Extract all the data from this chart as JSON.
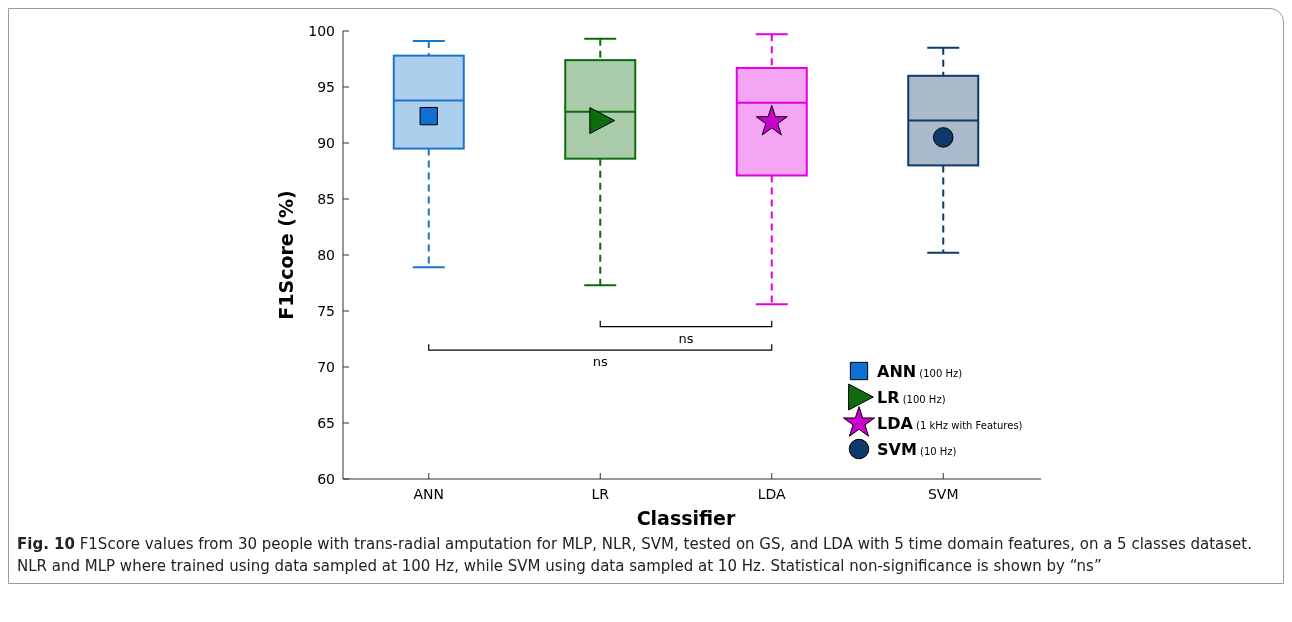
{
  "chart_data": {
    "type": "box",
    "xlabel": "Classifier",
    "ylabel": "F1Score (%)",
    "categories": [
      "ANN",
      "LR",
      "LDA",
      "SVM"
    ],
    "colors": [
      "#1874cd",
      "#0d6b0d",
      "#e000e0",
      "#0d3a6b"
    ],
    "boxes": [
      {
        "low": 78.9,
        "q1": 89.5,
        "median": 93.8,
        "q3": 97.8,
        "high": 99.1
      },
      {
        "low": 77.3,
        "q1": 88.6,
        "median": 92.8,
        "q3": 97.4,
        "high": 99.3
      },
      {
        "low": 75.6,
        "q1": 87.1,
        "median": 93.6,
        "q3": 96.7,
        "high": 99.7
      },
      {
        "low": 80.2,
        "q1": 88.0,
        "median": 92.0,
        "q3": 96.0,
        "high": 98.5
      }
    ],
    "series": [
      {
        "type": "scatter",
        "name": "ANN (100 Hz)",
        "color": "#0f6fd3",
        "marker": "square",
        "x": [
          "ANN"
        ],
        "values": [
          92.4
        ]
      },
      {
        "type": "scatter",
        "name": "LR (100 Hz)",
        "color": "#0d6b0d",
        "marker": "triangle",
        "x": [
          "LR"
        ],
        "values": [
          92.0
        ]
      },
      {
        "type": "scatter",
        "name": "LDA (1 kHz with Features)",
        "color": "#cc00cc",
        "marker": "star",
        "x": [
          "LDA"
        ],
        "values": [
          91.9
        ]
      },
      {
        "type": "scatter",
        "name": "SVM (10 Hz)",
        "color": "#0d3a6b",
        "marker": "circle",
        "x": [
          "SVM"
        ],
        "values": [
          90.5
        ]
      }
    ],
    "ylim": [
      60,
      100
    ],
    "yticks": [
      60,
      65,
      70,
      75,
      80,
      85,
      90,
      95,
      100
    ],
    "grid": false,
    "legend": "bottom right",
    "annotations": [
      "ns",
      "ns",
      "Fig. 10 F1Score values from 30 people with trans-radial amputation for MLP, NLR, SVM, tested on GS, and LDA with 5 time domain features, on a 5 classes dataset. NLR and MLP where trained using data sampled at 100 Hz, while SVM using data sampled at 10 Hz. Statistical non-significance is shown by “ns”"
    ]
  }
}
